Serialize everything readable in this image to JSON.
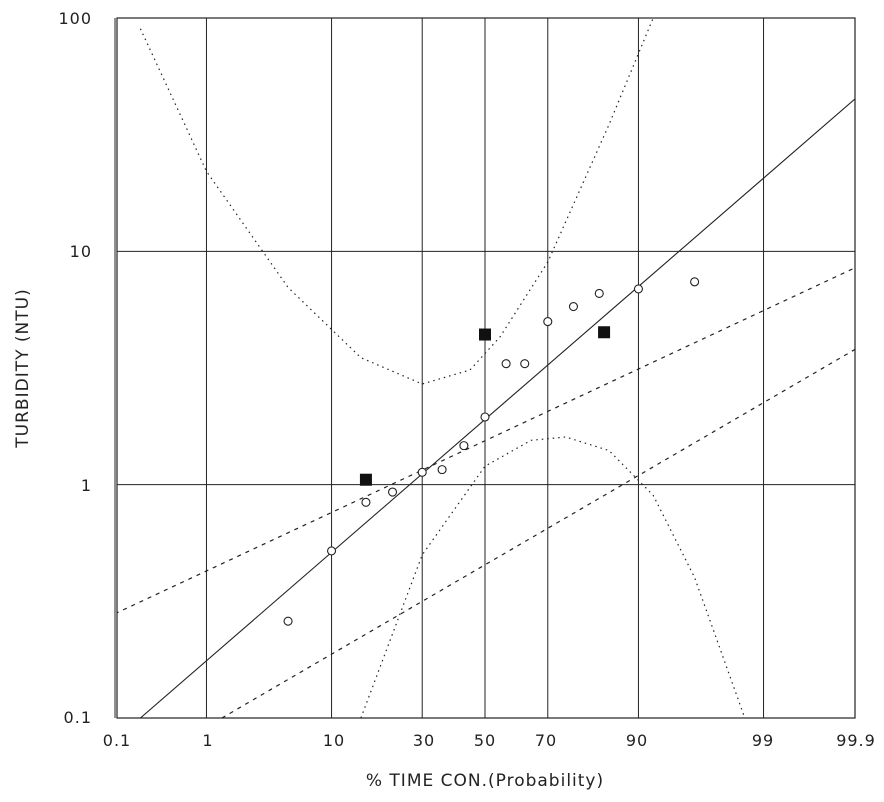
{
  "chart_data": {
    "type": "scatter",
    "xlabel": "% TIME CON.(Probability)",
    "ylabel": "TURBIDITY (NTU)",
    "x_scale": "normal-probability",
    "y_scale": "log",
    "xlim": [
      0.1,
      99.9
    ],
    "ylim": [
      0.1,
      100
    ],
    "x_ticks": [
      "0.1",
      "1",
      "10",
      "30",
      "50",
      "70",
      "90",
      "99",
      "99.9"
    ],
    "y_ticks": [
      "100",
      "10",
      "1",
      "0.1"
    ],
    "grid": true,
    "series": [
      {
        "marker": "open-circle",
        "points": [
          {
            "x": 5,
            "y": 0.26
          },
          {
            "x": 10,
            "y": 0.52
          },
          {
            "x": 16,
            "y": 0.84
          },
          {
            "x": 22,
            "y": 0.93
          },
          {
            "x": 30,
            "y": 1.13
          },
          {
            "x": 36,
            "y": 1.16
          },
          {
            "x": 43,
            "y": 1.47
          },
          {
            "x": 50,
            "y": 1.95
          },
          {
            "x": 57,
            "y": 3.3
          },
          {
            "x": 63,
            "y": 3.3
          },
          {
            "x": 70,
            "y": 5.0
          },
          {
            "x": 77,
            "y": 5.8
          },
          {
            "x": 83,
            "y": 6.6
          },
          {
            "x": 90,
            "y": 6.9
          },
          {
            "x": 96,
            "y": 7.4
          }
        ]
      },
      {
        "marker": "filled-square",
        "points": [
          {
            "x": 16,
            "y": 1.05
          },
          {
            "x": 50,
            "y": 4.4
          },
          {
            "x": 84,
            "y": 4.5
          }
        ]
      },
      {
        "line": "solid",
        "points": [
          {
            "x": 0.2,
            "y": 0.1
          },
          {
            "x": 99.9,
            "y": 45
          }
        ]
      },
      {
        "line": "dashed",
        "points": [
          {
            "x": 0.1,
            "y": 0.28
          },
          {
            "x": 99.9,
            "y": 8.5
          }
        ]
      },
      {
        "line": "dashed",
        "points": [
          {
            "x": 1.4,
            "y": 0.1
          },
          {
            "x": 99.9,
            "y": 3.8
          }
        ]
      },
      {
        "line": "dotted",
        "points": [
          {
            "x": 0.2,
            "y": 90
          },
          {
            "x": 1,
            "y": 22
          },
          {
            "x": 5,
            "y": 7
          },
          {
            "x": 15,
            "y": 3.5
          },
          {
            "x": 30,
            "y": 2.7
          },
          {
            "x": 45,
            "y": 3.1
          },
          {
            "x": 55,
            "y": 4.3
          },
          {
            "x": 70,
            "y": 9
          },
          {
            "x": 85,
            "y": 35
          },
          {
            "x": 92,
            "y": 100
          }
        ]
      },
      {
        "line": "dotted",
        "points": [
          {
            "x": 15,
            "y": 0.1
          },
          {
            "x": 30,
            "y": 0.5
          },
          {
            "x": 50,
            "y": 1.2
          },
          {
            "x": 65,
            "y": 1.55
          },
          {
            "x": 75,
            "y": 1.6
          },
          {
            "x": 85,
            "y": 1.4
          },
          {
            "x": 92,
            "y": 0.9
          },
          {
            "x": 96,
            "y": 0.4
          },
          {
            "x": 98.5,
            "y": 0.1
          }
        ]
      }
    ]
  }
}
